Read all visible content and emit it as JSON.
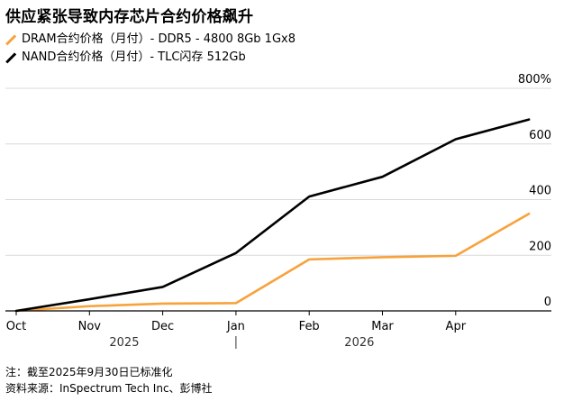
{
  "header": {
    "title": "供应紧张导致内存芯片合约价格飙升"
  },
  "footer": {
    "note": "注：截至2025年9月30日已标准化",
    "source": "资料来源：InSpectrum Tech Inc、彭博社"
  },
  "colors": {
    "dram": "#f7a23b",
    "nand": "#000000",
    "grid": "#d9d9d9",
    "axis": "#000000"
  },
  "chart_data": {
    "type": "line",
    "x": [
      "2025-10",
      "2025-11",
      "2025-12",
      "2026-01",
      "2026-02",
      "2026-03",
      "2026-04",
      "2026-05"
    ],
    "x_tick_labels": [
      "Oct",
      "Nov",
      "Dec",
      "Jan",
      "Feb",
      "Mar",
      "Apr"
    ],
    "year_labels": [
      "2025",
      "2026"
    ],
    "ylim": [
      0,
      800
    ],
    "y_ticks": [
      0,
      200,
      400,
      600,
      800
    ],
    "y_tick_labels": [
      "0",
      "200",
      "400",
      "600",
      "800%"
    ],
    "grid": true,
    "legend_position": "top-left",
    "series": [
      {
        "name": "DRAM合约价格（月付）- DDR5 - 4800 8Gb 1Gx8",
        "color": "#f7a23b",
        "values": [
          0,
          17,
          26,
          28,
          185,
          193,
          198,
          349
        ]
      },
      {
        "name": "NAND合约价格（月付）- TLC闪存 512Gb",
        "color": "#000000",
        "values": [
          0,
          42,
          86,
          208,
          411,
          482,
          617,
          688
        ]
      }
    ]
  }
}
